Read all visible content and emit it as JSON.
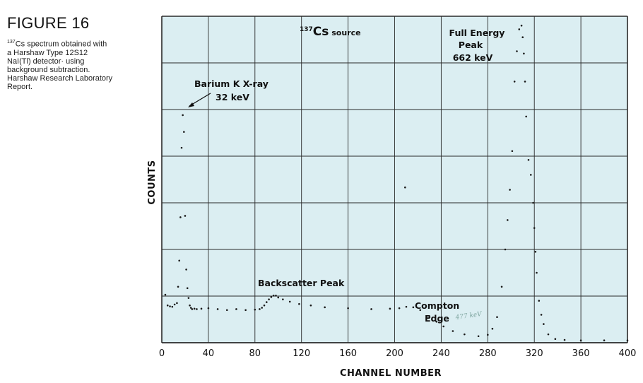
{
  "caption": {
    "title": "FIGURE 16",
    "sup": "137",
    "text": "Cs spectrum obtained with a Harshaw Type 12S12 NaI(Tl) detector· using background subtraction. Harshaw Research Laboratory Report."
  },
  "chart_data": {
    "type": "scatter",
    "title": "",
    "xlabel": "CHANNEL NUMBER",
    "ylabel": "COUNTS",
    "xlim": [
      0,
      400
    ],
    "ylim": [
      0,
      7
    ],
    "xticks": [
      0,
      40,
      80,
      120,
      160,
      200,
      240,
      280,
      320,
      360,
      400
    ],
    "yticks_labeled": false,
    "grid": true,
    "colors": {
      "plot_bg": "#dbeef2",
      "grid": "#2a2a2a",
      "points": "#1a1a1a",
      "handwriting": "#7fa6a0"
    },
    "annotations": {
      "source_sup": "137",
      "source_main": "Cs",
      "source_rest": " source",
      "peak_line1": "Full Energy",
      "peak_line2": "Peak",
      "peak_line3": "662 keV",
      "xray_line1": "Barium K X-ray",
      "xray_line2": "32 keV",
      "backscatter": "Backscatter Peak",
      "compton_line1": "Compton",
      "compton_line2": "Edge",
      "handwritten": "477 keV"
    },
    "series": [
      {
        "points": [
          [
            3,
            1.03
          ],
          [
            5,
            0.8
          ],
          [
            7,
            0.78
          ],
          [
            9,
            0.77
          ],
          [
            11,
            0.82
          ],
          [
            13,
            0.85
          ],
          [
            14,
            1.2
          ],
          [
            15,
            1.76
          ],
          [
            16,
            2.69
          ],
          [
            17,
            4.18
          ],
          [
            18,
            4.88
          ],
          [
            19,
            4.52
          ],
          [
            20,
            2.72
          ],
          [
            21,
            1.57
          ],
          [
            22,
            1.17
          ],
          [
            23,
            0.96
          ],
          [
            24,
            0.8
          ],
          [
            25,
            0.75
          ],
          [
            26,
            0.72
          ],
          [
            28,
            0.73
          ],
          [
            30,
            0.72
          ],
          [
            34,
            0.73
          ],
          [
            40,
            0.74
          ],
          [
            48,
            0.72
          ],
          [
            56,
            0.7
          ],
          [
            64,
            0.72
          ],
          [
            72,
            0.7
          ],
          [
            80,
            0.71
          ],
          [
            84,
            0.72
          ],
          [
            86,
            0.75
          ],
          [
            88,
            0.8
          ],
          [
            90,
            0.87
          ],
          [
            92,
            0.93
          ],
          [
            94,
            0.98
          ],
          [
            96,
            1.01
          ],
          [
            98,
            1.01
          ],
          [
            100,
            0.97
          ],
          [
            104,
            0.93
          ],
          [
            110,
            0.88
          ],
          [
            118,
            0.83
          ],
          [
            128,
            0.8
          ],
          [
            140,
            0.76
          ],
          [
            160,
            0.74
          ],
          [
            180,
            0.72
          ],
          [
            196,
            0.73
          ],
          [
            204,
            0.74
          ],
          [
            210,
            0.77
          ],
          [
            216,
            0.76
          ],
          [
            222,
            0.7
          ],
          [
            230,
            0.55
          ],
          [
            236,
            0.45
          ],
          [
            242,
            0.35
          ],
          [
            250,
            0.25
          ],
          [
            260,
            0.18
          ],
          [
            272,
            0.14
          ],
          [
            280,
            0.17
          ],
          [
            284,
            0.3
          ],
          [
            288,
            0.55
          ],
          [
            292,
            1.2
          ],
          [
            295,
            2.0
          ],
          [
            297,
            2.63
          ],
          [
            299,
            3.28
          ],
          [
            301,
            4.11
          ],
          [
            303,
            5.6
          ],
          [
            305,
            6.25
          ],
          [
            307,
            6.72
          ],
          [
            309,
            6.8
          ],
          [
            310,
            6.55
          ],
          [
            311,
            6.2
          ],
          [
            312,
            5.6
          ],
          [
            313,
            4.85
          ],
          [
            315,
            3.92
          ],
          [
            317,
            3.6
          ],
          [
            319,
            3.0
          ],
          [
            320,
            2.46
          ],
          [
            321,
            1.95
          ],
          [
            322,
            1.5
          ],
          [
            324,
            0.9
          ],
          [
            326,
            0.6
          ],
          [
            328,
            0.4
          ],
          [
            332,
            0.18
          ],
          [
            338,
            0.08
          ],
          [
            346,
            0.06
          ],
          [
            360,
            0.05
          ],
          [
            380,
            0.05
          ],
          [
            400,
            0.05
          ],
          [
            209,
            3.33
          ]
        ]
      }
    ]
  }
}
